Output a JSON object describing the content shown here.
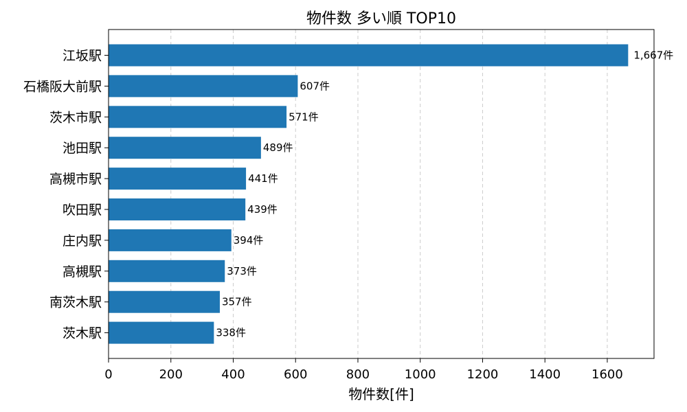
{
  "chart_data": {
    "type": "bar",
    "orientation": "horizontal",
    "title": "物件数 多い順 TOP10",
    "xlabel": "物件数[件]",
    "ylabel": "",
    "categories": [
      "江坂駅",
      "石橋阪大前駅",
      "茨木市駅",
      "池田駅",
      "高槻市駅",
      "吹田駅",
      "庄内駅",
      "高槻駅",
      "南茨木駅",
      "茨木駅"
    ],
    "values": [
      1667,
      607,
      571,
      489,
      441,
      439,
      394,
      373,
      357,
      338
    ],
    "value_labels": [
      "1,667件",
      "607件",
      "571件",
      "489件",
      "441件",
      "439件",
      "394件",
      "373件",
      "357件",
      "338件"
    ],
    "xlim": [
      0,
      1750
    ],
    "xticks": [
      0,
      200,
      400,
      600,
      800,
      1000,
      1200,
      1400,
      1600
    ],
    "grid": "x-dashed",
    "bar_color": "#1f77b4"
  }
}
